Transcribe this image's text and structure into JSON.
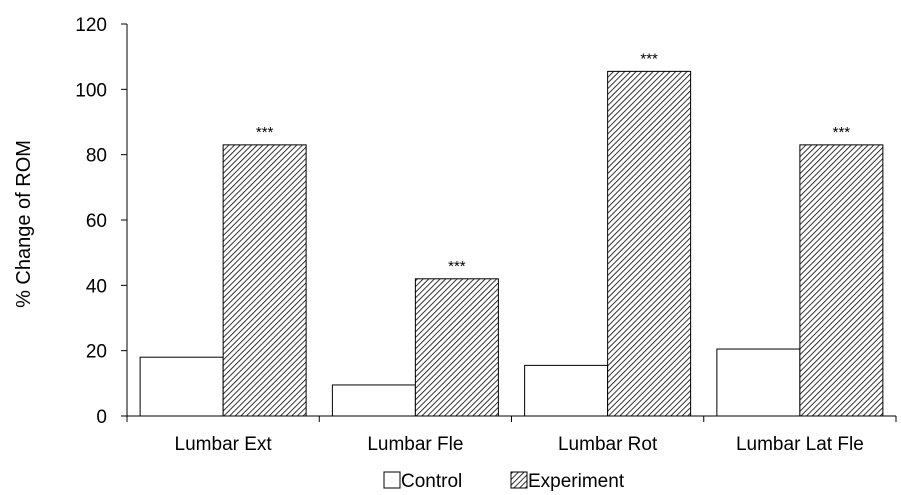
{
  "chart_data": {
    "type": "bar",
    "categories": [
      "Lumbar Ext",
      "Lumbar Fle",
      "Lumbar Rot",
      "Lumbar Lat Fle"
    ],
    "series": [
      {
        "name": "Control",
        "values": [
          18,
          9.5,
          15.5,
          20.5
        ],
        "fill": "#ffffff"
      },
      {
        "name": "Experiment",
        "values": [
          83,
          42,
          105.5,
          83
        ],
        "fill": "hatch"
      }
    ],
    "significance": [
      "***",
      "***",
      "***",
      "***"
    ],
    "ylabel": "% Change of ROM",
    "xlabel": "",
    "ylim": [
      0,
      120
    ],
    "yticks": [
      0,
      20,
      40,
      60,
      80,
      100,
      120
    ],
    "grid": false,
    "legend_position": "bottom"
  },
  "colors": {
    "axis": "#000000",
    "bar_edge": "#000000",
    "hatch_line": "#000000"
  }
}
